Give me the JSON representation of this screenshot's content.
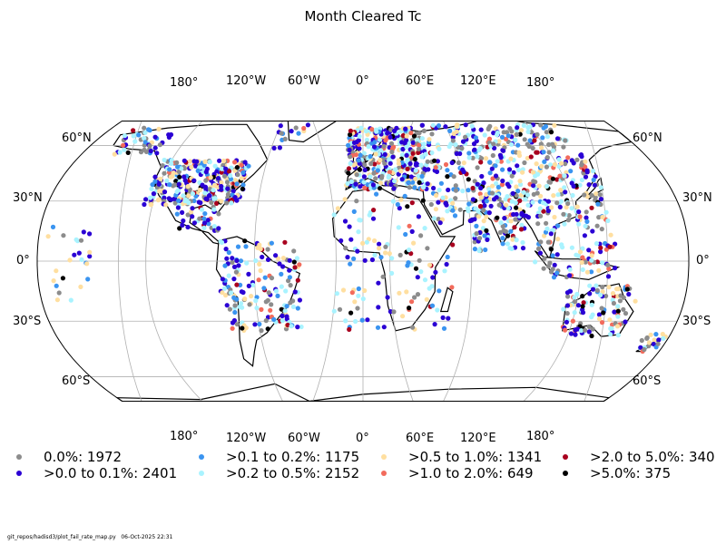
{
  "title": "Month Cleared Tc",
  "footer": {
    "script_path": "git_repos/hadisd3/plot_fail_rate_map.py",
    "timestamp": "06-Oct-2025 22:31"
  },
  "map": {
    "projection": "Robinson",
    "central_longitude": 0,
    "gridlines": true,
    "longitude_labels": [
      "180°",
      "120°W",
      "60°W",
      "0°",
      "60°E",
      "120°E",
      "180°"
    ],
    "latitude_labels": [
      "60°N",
      "30°N",
      "0°",
      "30°S",
      "60°S"
    ]
  },
  "legend": [
    {
      "label": "0.0%: 1972",
      "color": "#8c8c8c"
    },
    {
      "label": ">0.0 to 0.1%: 2401",
      "color": "#2b00d4"
    },
    {
      "label": ">0.1 to 0.2%: 1175",
      "color": "#3a94f0"
    },
    {
      "label": ">0.2 to 0.5%: 2152",
      "color": "#a9f3ff"
    },
    {
      "label": ">0.5 to 1.0%: 1341",
      "color": "#ffdfa0"
    },
    {
      "label": ">1.0 to 2.0%: 649",
      "color": "#f26b5c"
    },
    {
      "label": ">2.0 to 5.0%: 340",
      "color": "#a8001e"
    },
    {
      "label": ">5.0%: 375",
      "color": "#000000"
    }
  ]
}
